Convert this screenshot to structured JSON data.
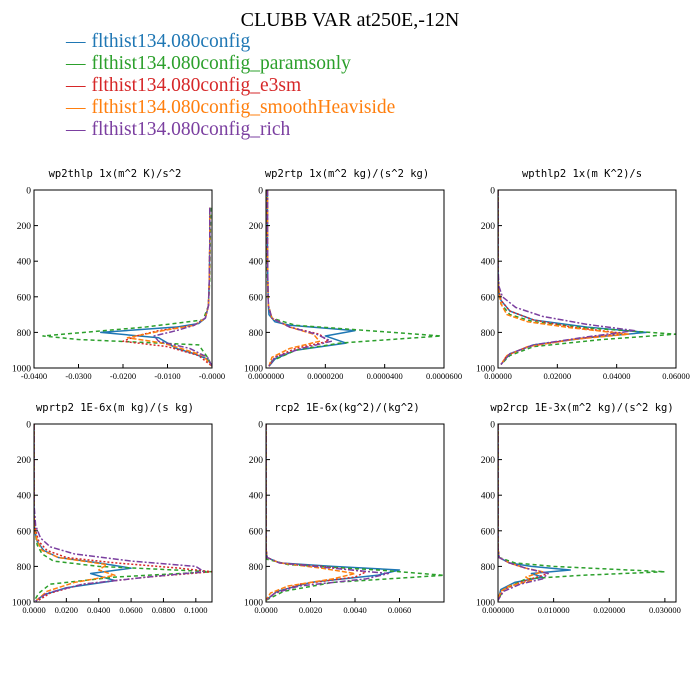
{
  "title": "CLUBB VAR at250E,-12N",
  "legend": [
    {
      "label": "flthist134.080config",
      "color": "#1f77b4",
      "dash": ""
    },
    {
      "label": "flthist134.080config_paramsonly",
      "color": "#2ca02c",
      "dash": "4,3"
    },
    {
      "label": "flthist134.080config_e3sm",
      "color": "#d62728",
      "dash": "2,2"
    },
    {
      "label": "flthist134.080config_smoothHeaviside",
      "color": "#ff7f0e",
      "dash": "5,2"
    },
    {
      "label": "flthist134.080config_rich",
      "color": "#7b3fa0",
      "dash": "6,2,2,2"
    }
  ],
  "chart_data": [
    {
      "type": "line",
      "title": "wp2thlp  1x(m^2 K)/s^2",
      "xlim": [
        -0.04,
        0.0
      ],
      "ylim": [
        1000,
        0
      ],
      "xticks": [
        -0.04,
        -0.03,
        -0.02,
        -0.01,
        0.0
      ],
      "xtick_labels": [
        "-0.0400",
        "-0.0300",
        "-0.0200",
        "-0.0100",
        "-0.0000"
      ],
      "yticks": [
        0,
        200,
        400,
        600,
        800,
        1000
      ],
      "series": [
        {
          "color": "#1f77b4",
          "dash": "",
          "x": [
            -0.0005,
            -0.0005,
            -0.0006,
            -0.0008,
            -0.0015,
            -0.003,
            -0.008,
            -0.025,
            -0.012,
            -0.01,
            -0.008,
            -0.004,
            -0.001,
            0.0
          ],
          "y": [
            100,
            300,
            500,
            650,
            720,
            750,
            770,
            800,
            830,
            860,
            890,
            920,
            950,
            990
          ]
        },
        {
          "color": "#2ca02c",
          "dash": "4,3",
          "x": [
            -0.0003,
            -0.0004,
            -0.0005,
            -0.0008,
            -0.002,
            -0.015,
            -0.038,
            -0.03,
            -0.003,
            -0.001,
            0.0
          ],
          "y": [
            100,
            300,
            500,
            650,
            730,
            770,
            820,
            840,
            870,
            940,
            990
          ]
        },
        {
          "color": "#d62728",
          "dash": "2,2",
          "x": [
            -0.0005,
            -0.0005,
            -0.0006,
            -0.0008,
            -0.0015,
            -0.004,
            -0.012,
            -0.017,
            -0.02,
            -0.01,
            -0.003,
            0.0
          ],
          "y": [
            100,
            300,
            500,
            650,
            720,
            760,
            790,
            820,
            850,
            880,
            930,
            990
          ]
        },
        {
          "color": "#ff7f0e",
          "dash": "5,2",
          "x": [
            -0.0005,
            -0.0005,
            -0.0006,
            -0.0008,
            -0.0015,
            -0.004,
            -0.011,
            -0.019,
            -0.011,
            -0.007,
            -0.002,
            0.0
          ],
          "y": [
            100,
            300,
            500,
            650,
            720,
            760,
            790,
            830,
            860,
            890,
            930,
            990
          ]
        },
        {
          "color": "#7b3fa0",
          "dash": "6,2,2,2",
          "x": [
            -0.0005,
            -0.0005,
            -0.0006,
            -0.0008,
            -0.0015,
            -0.004,
            -0.008,
            -0.013,
            -0.012,
            -0.005,
            -0.001,
            0.0
          ],
          "y": [
            100,
            300,
            500,
            650,
            720,
            760,
            790,
            820,
            850,
            890,
            940,
            990
          ]
        }
      ]
    },
    {
      "type": "line",
      "title": "wp2rtp  1x(m^2 kg)/(s^2 kg)",
      "xlim": [
        0.0,
        6e-05
      ],
      "ylim": [
        1000,
        0
      ],
      "xticks": [
        0.0,
        2e-05,
        4e-05,
        6e-05
      ],
      "xtick_labels": [
        "0.0000000",
        "0.0000200",
        "0.0000400",
        "0.0000600"
      ],
      "yticks": [
        0,
        200,
        400,
        600,
        800,
        1000
      ],
      "series": [
        {
          "color": "#1f77b4",
          "dash": "",
          "x": [
            5e-07,
            5e-07,
            6e-07,
            8e-07,
            1e-06,
            3e-06,
            8e-06,
            3e-05,
            2e-05,
            2.7e-05,
            1e-05,
            3e-06,
            1e-06
          ],
          "y": [
            0,
            300,
            500,
            650,
            700,
            740,
            760,
            790,
            820,
            860,
            900,
            950,
            990
          ]
        },
        {
          "color": "#2ca02c",
          "dash": "4,3",
          "x": [
            3e-07,
            4e-07,
            5e-07,
            8e-07,
            2e-06,
            1e-05,
            5.9e-05,
            2.5e-05,
            1e-05,
            2e-06,
            1e-06
          ],
          "y": [
            0,
            300,
            500,
            650,
            720,
            760,
            820,
            860,
            900,
            960,
            990
          ]
        },
        {
          "color": "#d62728",
          "dash": "2,2",
          "x": [
            5e-07,
            5e-07,
            6e-07,
            8e-07,
            2e-06,
            8e-06,
            1.8e-05,
            2.1e-05,
            1e-05,
            3e-06,
            1e-06
          ],
          "y": [
            0,
            300,
            500,
            650,
            720,
            770,
            810,
            850,
            890,
            940,
            990
          ]
        },
        {
          "color": "#ff7f0e",
          "dash": "5,2",
          "x": [
            5e-07,
            5e-07,
            6e-07,
            8e-07,
            2e-06,
            8e-06,
            1.6e-05,
            1.8e-05,
            8e-06,
            2e-06,
            1e-06
          ],
          "y": [
            0,
            300,
            500,
            650,
            720,
            770,
            810,
            850,
            890,
            940,
            990
          ]
        },
        {
          "color": "#7b3fa0",
          "dash": "6,2,2,2",
          "x": [
            5e-07,
            5e-07,
            6e-07,
            8e-07,
            2e-06,
            8e-06,
            1.7e-05,
            2.2e-05,
            1.2e-05,
            3e-06,
            1e-06
          ],
          "y": [
            0,
            300,
            500,
            650,
            720,
            770,
            810,
            850,
            890,
            940,
            990
          ]
        }
      ]
    },
    {
      "type": "line",
      "title": "wpthlp2  1x(m K^2)/s",
      "xlim": [
        0.0,
        0.06
      ],
      "ylim": [
        1000,
        0
      ],
      "xticks": [
        0.0,
        0.02,
        0.04,
        0.06
      ],
      "xtick_labels": [
        "0.00000",
        "0.02000",
        "0.04000",
        "0.06000"
      ],
      "yticks": [
        0,
        200,
        400,
        600,
        800,
        1000
      ],
      "series": [
        {
          "color": "#1f77b4",
          "dash": "",
          "x": [
            0.0,
            0.0,
            0.0002,
            0.001,
            0.004,
            0.012,
            0.03,
            0.05,
            0.03,
            0.012,
            0.004,
            0.001
          ],
          "y": [
            0,
            450,
            560,
            620,
            680,
            730,
            770,
            800,
            830,
            870,
            920,
            980
          ]
        },
        {
          "color": "#2ca02c",
          "dash": "4,3",
          "x": [
            0.0,
            0.0,
            0.0002,
            0.001,
            0.004,
            0.012,
            0.03,
            0.06,
            0.035,
            0.012,
            0.004,
            0.001
          ],
          "y": [
            0,
            450,
            560,
            640,
            700,
            740,
            775,
            810,
            840,
            880,
            930,
            980
          ]
        },
        {
          "color": "#d62728",
          "dash": "2,2",
          "x": [
            0.0,
            0.0,
            0.0002,
            0.001,
            0.004,
            0.012,
            0.025,
            0.042,
            0.025,
            0.01,
            0.003,
            0.001
          ],
          "y": [
            0,
            450,
            560,
            620,
            680,
            730,
            770,
            805,
            840,
            880,
            930,
            980
          ]
        },
        {
          "color": "#ff7f0e",
          "dash": "5,2",
          "x": [
            0.0,
            0.0,
            0.0002,
            0.001,
            0.003,
            0.01,
            0.025,
            0.044,
            0.025,
            0.01,
            0.003,
            0.001
          ],
          "y": [
            0,
            450,
            560,
            640,
            700,
            740,
            775,
            810,
            840,
            880,
            930,
            980
          ]
        },
        {
          "color": "#7b3fa0",
          "dash": "6,2,2,2",
          "x": [
            0.0,
            0.0,
            0.0003,
            0.0015,
            0.006,
            0.015,
            0.03,
            0.046,
            0.03,
            0.012,
            0.004,
            0.001
          ],
          "y": [
            0,
            430,
            540,
            600,
            660,
            710,
            755,
            790,
            825,
            870,
            920,
            980
          ]
        }
      ]
    },
    {
      "type": "line",
      "title": "wprtp2  1E-6x(m kg)/(s kg)",
      "xlim": [
        0.0,
        0.11
      ],
      "ylim": [
        1000,
        0
      ],
      "xticks": [
        0.0,
        0.02,
        0.04,
        0.06,
        0.08,
        0.1
      ],
      "xtick_labels": [
        "0.0000",
        "0.0200",
        "0.0400",
        "0.0600",
        "0.0800",
        "0.1000"
      ],
      "yticks": [
        0,
        200,
        400,
        600,
        800,
        1000
      ],
      "series": [
        {
          "color": "#1f77b4",
          "dash": "",
          "x": [
            0.0,
            0.0,
            0.0005,
            0.002,
            0.006,
            0.015,
            0.04,
            0.06,
            0.035,
            0.05,
            0.02,
            0.006,
            0.001
          ],
          "y": [
            0,
            500,
            600,
            660,
            710,
            750,
            780,
            810,
            840,
            880,
            920,
            960,
            995
          ]
        },
        {
          "color": "#2ca02c",
          "dash": "4,3",
          "x": [
            0.0,
            0.0,
            0.0005,
            0.002,
            0.005,
            0.012,
            0.04,
            0.11,
            0.05,
            0.01,
            0.003,
            0.0
          ],
          "y": [
            0,
            500,
            600,
            680,
            730,
            770,
            800,
            830,
            860,
            900,
            950,
            995
          ]
        },
        {
          "color": "#d62728",
          "dash": "2,2",
          "x": [
            0.0,
            0.0,
            0.001,
            0.003,
            0.008,
            0.02,
            0.05,
            0.09,
            0.11,
            0.07,
            0.03,
            0.01,
            0.002
          ],
          "y": [
            0,
            500,
            600,
            660,
            710,
            750,
            780,
            810,
            830,
            860,
            900,
            950,
            995
          ]
        },
        {
          "color": "#ff7f0e",
          "dash": "5,2",
          "x": [
            0.0,
            0.0,
            0.0005,
            0.002,
            0.005,
            0.015,
            0.045,
            0.04,
            0.05,
            0.025,
            0.008,
            0.001
          ],
          "y": [
            0,
            500,
            600,
            660,
            710,
            750,
            790,
            820,
            850,
            890,
            940,
            995
          ]
        },
        {
          "color": "#7b3fa0",
          "dash": "6,2,2,2",
          "x": [
            0.0,
            0.0,
            0.001,
            0.004,
            0.01,
            0.025,
            0.06,
            0.1,
            0.105,
            0.07,
            0.03,
            0.008,
            0.001
          ],
          "y": [
            0,
            450,
            570,
            640,
            690,
            730,
            770,
            800,
            830,
            860,
            900,
            950,
            995
          ]
        }
      ]
    },
    {
      "type": "line",
      "title": "rcp2  1E-6x(kg^2)/(kg^2)",
      "xlim": [
        0.0,
        0.008
      ],
      "ylim": [
        1000,
        0
      ],
      "xticks": [
        0.0,
        0.002,
        0.004,
        0.006
      ],
      "xtick_labels": [
        "0.0000",
        "0.0020",
        "0.0040",
        "0.0060"
      ],
      "yticks": [
        0,
        200,
        400,
        600,
        800,
        1000
      ],
      "series": [
        {
          "color": "#1f77b4",
          "dash": "",
          "x": [
            0.0,
            0.0,
            5e-05,
            0.0006,
            0.003,
            0.006,
            0.005,
            0.002,
            0.0005,
            0.0
          ],
          "y": [
            0,
            700,
            750,
            780,
            800,
            820,
            850,
            890,
            940,
            990
          ]
        },
        {
          "color": "#2ca02c",
          "dash": "4,3",
          "x": [
            0.0,
            0.0,
            5e-05,
            0.001,
            0.005,
            0.008,
            0.003,
            0.0008,
            0.0
          ],
          "y": [
            0,
            700,
            760,
            790,
            820,
            850,
            890,
            940,
            990
          ]
        },
        {
          "color": "#d62728",
          "dash": "2,2",
          "x": [
            0.0,
            0.0,
            5e-05,
            0.0006,
            0.0025,
            0.0045,
            0.004,
            0.0015,
            0.0004,
            0.0
          ],
          "y": [
            0,
            700,
            750,
            780,
            800,
            830,
            860,
            900,
            950,
            990
          ]
        },
        {
          "color": "#ff7f0e",
          "dash": "5,2",
          "x": [
            0.0,
            0.0,
            5e-05,
            0.0006,
            0.0025,
            0.004,
            0.003,
            0.001,
            0.0002,
            0.0
          ],
          "y": [
            0,
            700,
            750,
            780,
            810,
            840,
            870,
            910,
            950,
            990
          ]
        },
        {
          "color": "#7b3fa0",
          "dash": "6,2,2,2",
          "x": [
            0.0,
            0.0,
            5e-05,
            0.0006,
            0.003,
            0.0055,
            0.0045,
            0.0015,
            0.0004,
            0.0
          ],
          "y": [
            0,
            700,
            750,
            780,
            810,
            840,
            870,
            910,
            950,
            990
          ]
        }
      ]
    },
    {
      "type": "line",
      "title": "wp2rcp  1E-3x(m^2 kg)/(s^2 kg)",
      "xlim": [
        0.0,
        0.032
      ],
      "ylim": [
        1000,
        0
      ],
      "xticks": [
        0.0,
        0.01,
        0.02,
        0.03
      ],
      "xtick_labels": [
        "0.000000",
        "0.010000",
        "0.020000",
        "0.030000"
      ],
      "yticks": [
        0,
        200,
        400,
        600,
        800,
        1000
      ],
      "series": [
        {
          "color": "#1f77b4",
          "dash": "",
          "x": [
            0.0,
            0.0,
            0.0002,
            0.002,
            0.006,
            0.013,
            0.006,
            0.008,
            0.003,
            0.0005,
            0.0
          ],
          "y": [
            0,
            700,
            750,
            780,
            800,
            820,
            840,
            860,
            890,
            930,
            990
          ]
        },
        {
          "color": "#2ca02c",
          "dash": "4,3",
          "x": [
            0.0,
            0.0,
            0.0002,
            0.003,
            0.01,
            0.03,
            0.015,
            0.005,
            0.003,
            0.001,
            0.0
          ],
          "y": [
            0,
            700,
            750,
            780,
            800,
            830,
            850,
            870,
            900,
            930,
            990
          ]
        },
        {
          "color": "#d62728",
          "dash": "2,2",
          "x": [
            0.0,
            0.0,
            0.0002,
            0.002,
            0.005,
            0.009,
            0.007,
            0.004,
            0.001,
            0.0
          ],
          "y": [
            0,
            700,
            750,
            780,
            810,
            840,
            860,
            890,
            930,
            990
          ]
        },
        {
          "color": "#ff7f0e",
          "dash": "5,2",
          "x": [
            0.0,
            0.0,
            0.0002,
            0.002,
            0.005,
            0.008,
            0.005,
            0.006,
            0.002,
            0.0005,
            0.0
          ],
          "y": [
            0,
            700,
            750,
            780,
            810,
            830,
            860,
            880,
            910,
            940,
            990
          ]
        },
        {
          "color": "#7b3fa0",
          "dash": "6,2,2,2",
          "x": [
            0.0,
            0.0,
            0.0002,
            0.002,
            0.005,
            0.009,
            0.008,
            0.004,
            0.001,
            0.0
          ],
          "y": [
            0,
            700,
            750,
            780,
            810,
            840,
            870,
            900,
            940,
            990
          ]
        }
      ]
    }
  ]
}
